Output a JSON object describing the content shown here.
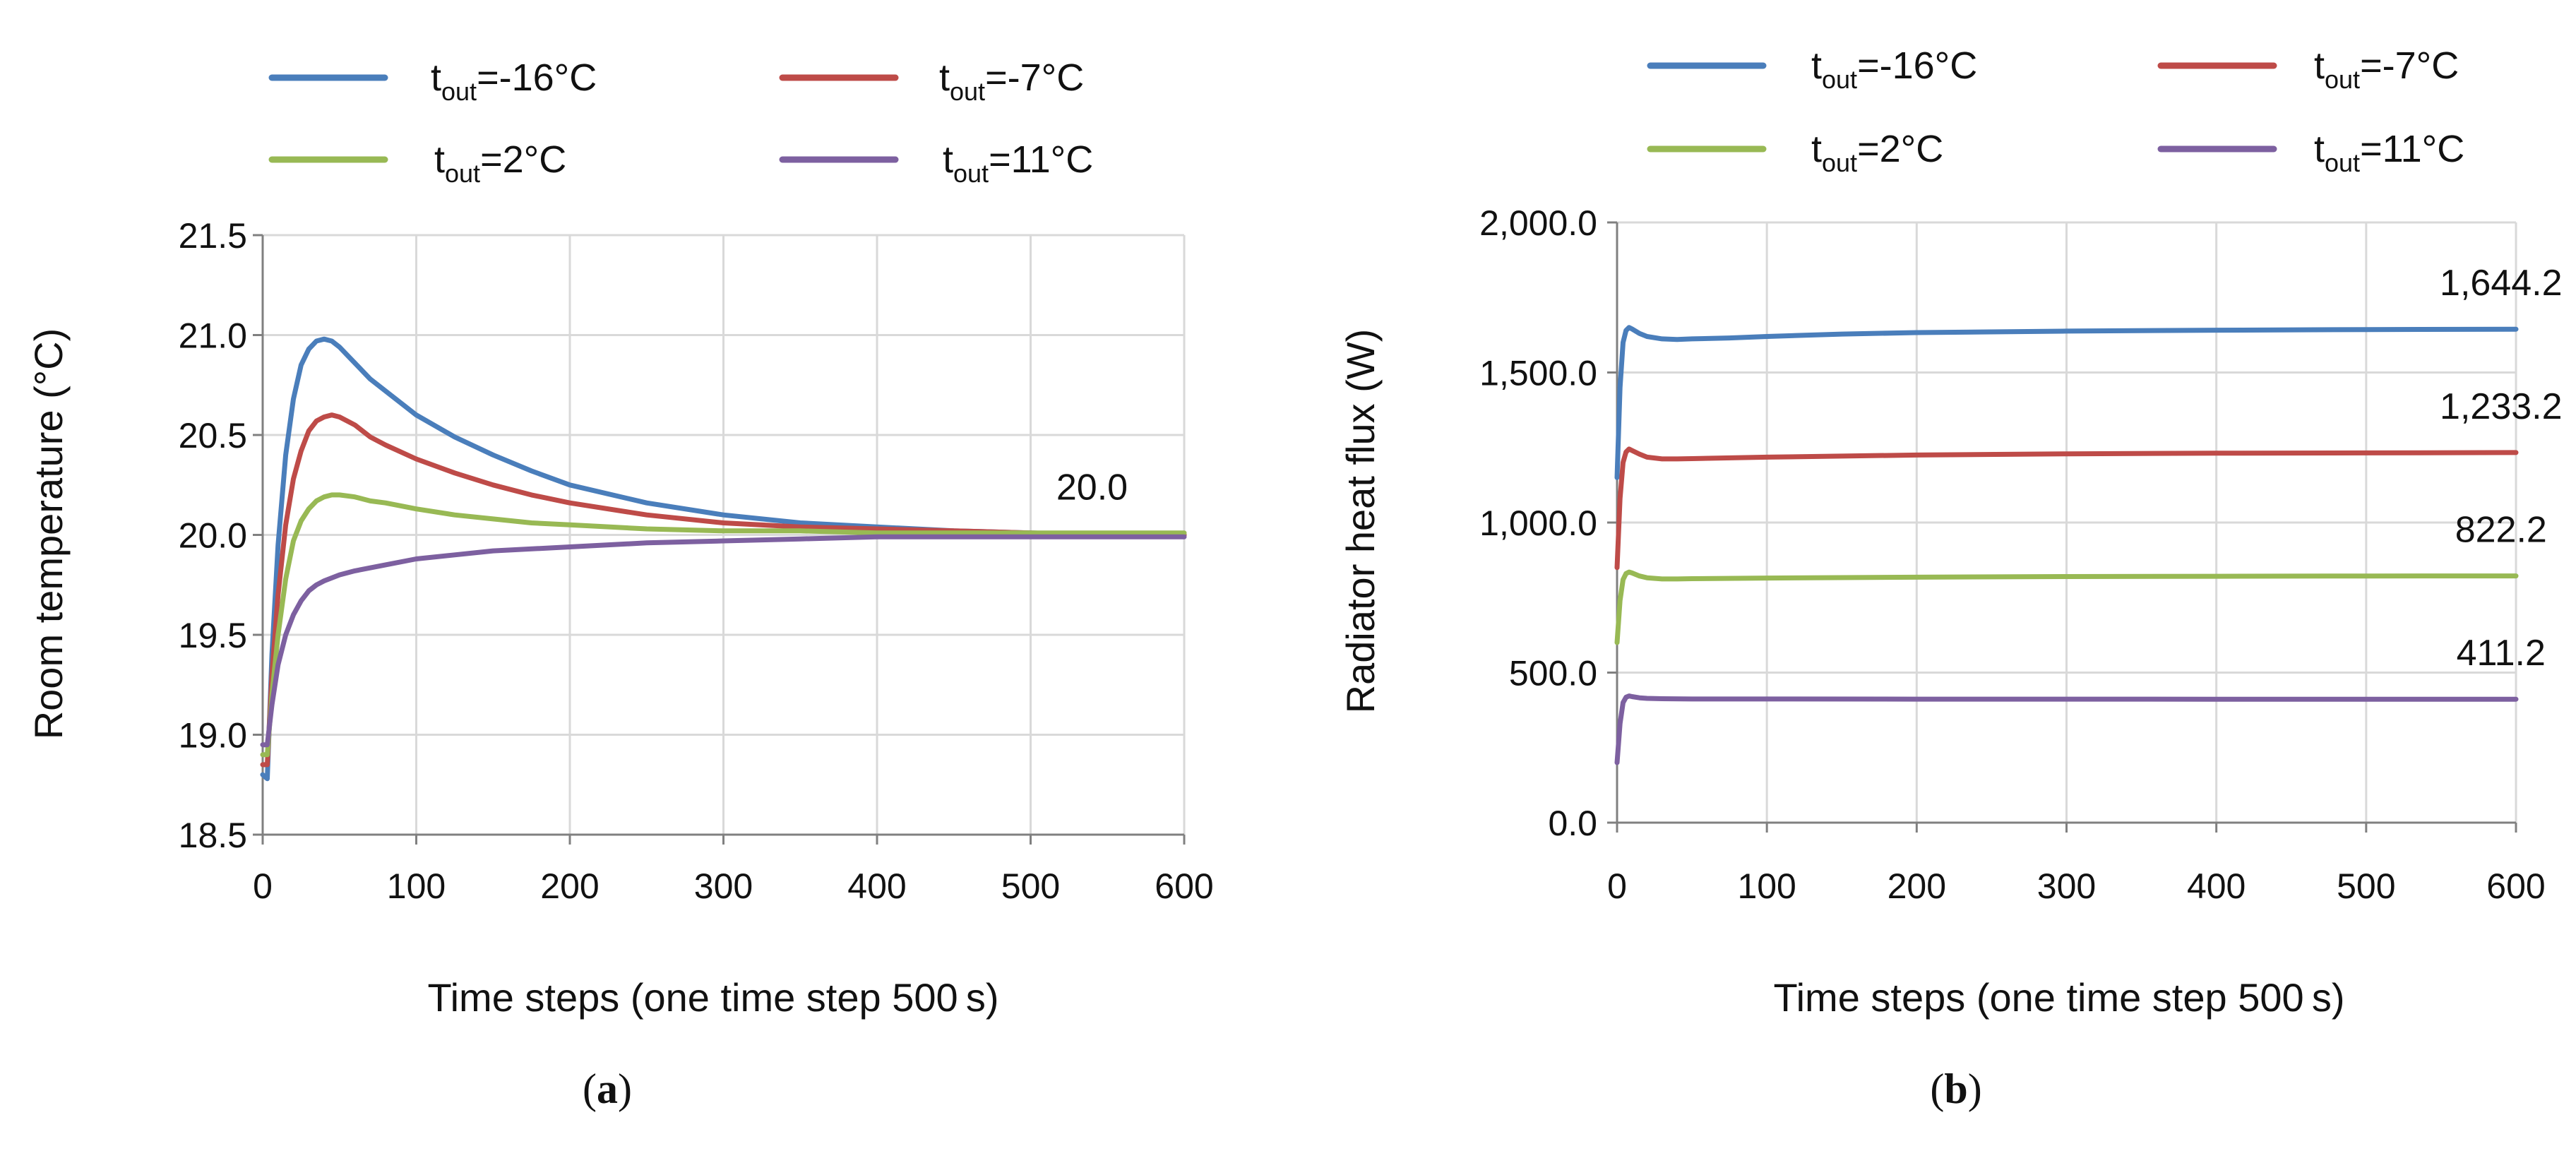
{
  "chart_data": [
    {
      "panel": "(a)",
      "panel_label": "a",
      "type": "line",
      "title": "",
      "xlabel": "Time steps (one time step 500 s)",
      "ylabel": "Room temperature (°C)",
      "xlim": [
        0,
        600
      ],
      "ylim": [
        18.5,
        21.5
      ],
      "x_ticks": [
        0,
        100,
        200,
        300,
        400,
        500,
        600
      ],
      "x_tick_labels": [
        "0",
        "100",
        "200",
        "300",
        "400",
        "500",
        "600"
      ],
      "y_ticks": [
        18.5,
        19.0,
        19.5,
        20.0,
        20.5,
        21.0,
        21.5
      ],
      "y_tick_labels": [
        "18.5",
        "19.0",
        "19.5",
        "20.0",
        "20.5",
        "21.0",
        "21.5"
      ],
      "grid": true,
      "legend_placement": "top",
      "annotations": [
        {
          "text": "20.0",
          "x": 540,
          "y": 20.0
        }
      ],
      "series": [
        {
          "name": "t_out=-16°C",
          "legend_main": "t",
          "legend_sub": "out",
          "legend_rest": "=-16°C",
          "color": "#4a7ebb",
          "points": [
            [
              0,
              18.8
            ],
            [
              3,
              18.78
            ],
            [
              6,
              19.4
            ],
            [
              10,
              19.95
            ],
            [
              15,
              20.4
            ],
            [
              20,
              20.68
            ],
            [
              25,
              20.85
            ],
            [
              30,
              20.93
            ],
            [
              35,
              20.97
            ],
            [
              40,
              20.98
            ],
            [
              45,
              20.97
            ],
            [
              50,
              20.94
            ],
            [
              60,
              20.86
            ],
            [
              70,
              20.78
            ],
            [
              80,
              20.72
            ],
            [
              100,
              20.6
            ],
            [
              125,
              20.49
            ],
            [
              150,
              20.4
            ],
            [
              175,
              20.32
            ],
            [
              200,
              20.25
            ],
            [
              250,
              20.16
            ],
            [
              300,
              20.1
            ],
            [
              350,
              20.06
            ],
            [
              400,
              20.04
            ],
            [
              450,
              20.02
            ],
            [
              500,
              20.01
            ],
            [
              550,
              20.0
            ],
            [
              600,
              20.0
            ]
          ]
        },
        {
          "name": "t_out=-7°C",
          "legend_main": "t",
          "legend_sub": "out",
          "legend_rest": "=-7°C",
          "color": "#be4b48",
          "points": [
            [
              0,
              18.85
            ],
            [
              3,
              18.85
            ],
            [
              6,
              19.3
            ],
            [
              10,
              19.7
            ],
            [
              15,
              20.05
            ],
            [
              20,
              20.28
            ],
            [
              25,
              20.42
            ],
            [
              30,
              20.52
            ],
            [
              35,
              20.57
            ],
            [
              40,
              20.59
            ],
            [
              45,
              20.6
            ],
            [
              50,
              20.59
            ],
            [
              60,
              20.55
            ],
            [
              70,
              20.49
            ],
            [
              80,
              20.45
            ],
            [
              100,
              20.38
            ],
            [
              125,
              20.31
            ],
            [
              150,
              20.25
            ],
            [
              175,
              20.2
            ],
            [
              200,
              20.16
            ],
            [
              250,
              20.1
            ],
            [
              300,
              20.06
            ],
            [
              350,
              20.04
            ],
            [
              400,
              20.03
            ],
            [
              450,
              20.02
            ],
            [
              500,
              20.01
            ],
            [
              550,
              20.0
            ],
            [
              600,
              20.0
            ]
          ]
        },
        {
          "name": "t_out=2°C",
          "legend_main": "t",
          "legend_sub": "out",
          "legend_rest": "=2°C",
          "color": "#98b954",
          "points": [
            [
              0,
              18.9
            ],
            [
              3,
              18.9
            ],
            [
              6,
              19.2
            ],
            [
              10,
              19.5
            ],
            [
              15,
              19.78
            ],
            [
              20,
              19.97
            ],
            [
              25,
              20.07
            ],
            [
              30,
              20.13
            ],
            [
              35,
              20.17
            ],
            [
              40,
              20.19
            ],
            [
              45,
              20.2
            ],
            [
              50,
              20.2
            ],
            [
              60,
              20.19
            ],
            [
              70,
              20.17
            ],
            [
              80,
              20.16
            ],
            [
              100,
              20.13
            ],
            [
              125,
              20.1
            ],
            [
              150,
              20.08
            ],
            [
              175,
              20.06
            ],
            [
              200,
              20.05
            ],
            [
              250,
              20.03
            ],
            [
              300,
              20.02
            ],
            [
              350,
              20.02
            ],
            [
              400,
              20.01
            ],
            [
              450,
              20.01
            ],
            [
              500,
              20.01
            ],
            [
              550,
              20.01
            ],
            [
              600,
              20.01
            ]
          ]
        },
        {
          "name": "t_out=11°C",
          "legend_main": "t",
          "legend_sub": "out",
          "legend_rest": "=11°C",
          "color": "#7d60a0",
          "points": [
            [
              0,
              18.95
            ],
            [
              3,
              18.95
            ],
            [
              6,
              19.15
            ],
            [
              10,
              19.35
            ],
            [
              15,
              19.5
            ],
            [
              20,
              19.6
            ],
            [
              25,
              19.67
            ],
            [
              30,
              19.72
            ],
            [
              35,
              19.75
            ],
            [
              40,
              19.77
            ],
            [
              50,
              19.8
            ],
            [
              60,
              19.82
            ],
            [
              80,
              19.85
            ],
            [
              100,
              19.88
            ],
            [
              125,
              19.9
            ],
            [
              150,
              19.92
            ],
            [
              200,
              19.94
            ],
            [
              250,
              19.96
            ],
            [
              300,
              19.97
            ],
            [
              350,
              19.98
            ],
            [
              400,
              19.99
            ],
            [
              450,
              19.99
            ],
            [
              500,
              19.99
            ],
            [
              550,
              19.99
            ],
            [
              600,
              19.99
            ]
          ]
        }
      ]
    },
    {
      "panel": "(b)",
      "panel_label": "b",
      "type": "line",
      "title": "",
      "xlabel": "Time steps (one time step 500 s)",
      "ylabel": "Radiator heat flux (W)",
      "xlim": [
        0,
        600
      ],
      "ylim": [
        0,
        2000
      ],
      "x_ticks": [
        0,
        100,
        200,
        300,
        400,
        500,
        600
      ],
      "x_tick_labels": [
        "0",
        "100",
        "200",
        "300",
        "400",
        "500",
        "600"
      ],
      "y_ticks": [
        0,
        500,
        1000,
        1500,
        2000
      ],
      "y_tick_labels": [
        "0.0",
        "500.0",
        "1,000.0",
        "1,500.0",
        "2,000.0"
      ],
      "grid": true,
      "legend_placement": "top",
      "annotations": [
        {
          "text": "1,644.2",
          "x": 590,
          "y": 1644.2
        },
        {
          "text": "1,233.2",
          "x": 590,
          "y": 1233.2
        },
        {
          "text": "822.2",
          "x": 590,
          "y": 822.2
        },
        {
          "text": "411.2",
          "x": 590,
          "y": 411.2
        }
      ],
      "series": [
        {
          "name": "t_out=-16°C",
          "legend_main": "t",
          "legend_sub": "out",
          "legend_rest": "=-16°C",
          "color": "#4a7ebb",
          "points": [
            [
              0,
              1150
            ],
            [
              2,
              1450
            ],
            [
              4,
              1600
            ],
            [
              6,
              1640
            ],
            [
              8,
              1650
            ],
            [
              10,
              1645
            ],
            [
              15,
              1630
            ],
            [
              20,
              1620
            ],
            [
              30,
              1612
            ],
            [
              40,
              1610
            ],
            [
              50,
              1612
            ],
            [
              75,
              1615
            ],
            [
              100,
              1620
            ],
            [
              150,
              1628
            ],
            [
              200,
              1633
            ],
            [
              300,
              1638
            ],
            [
              400,
              1641
            ],
            [
              500,
              1643
            ],
            [
              600,
              1644.2
            ]
          ]
        },
        {
          "name": "t_out=-7°C",
          "legend_main": "t",
          "legend_sub": "out",
          "legend_rest": "=-7°C",
          "color": "#be4b48",
          "points": [
            [
              0,
              850
            ],
            [
              2,
              1080
            ],
            [
              4,
              1200
            ],
            [
              6,
              1235
            ],
            [
              8,
              1245
            ],
            [
              10,
              1240
            ],
            [
              15,
              1228
            ],
            [
              20,
              1218
            ],
            [
              30,
              1212
            ],
            [
              40,
              1212
            ],
            [
              50,
              1213
            ],
            [
              100,
              1218
            ],
            [
              200,
              1225
            ],
            [
              300,
              1229
            ],
            [
              400,
              1231
            ],
            [
              500,
              1232
            ],
            [
              600,
              1233.2
            ]
          ]
        },
        {
          "name": "t_out=2°C",
          "legend_main": "t",
          "legend_sub": "out",
          "legend_rest": "=2°C",
          "color": "#98b954",
          "points": [
            [
              0,
              600
            ],
            [
              2,
              740
            ],
            [
              4,
              810
            ],
            [
              6,
              830
            ],
            [
              8,
              835
            ],
            [
              10,
              832
            ],
            [
              15,
              822
            ],
            [
              20,
              816
            ],
            [
              30,
              812
            ],
            [
              40,
              812
            ],
            [
              50,
              813
            ],
            [
              100,
              815
            ],
            [
              200,
              818
            ],
            [
              300,
              820
            ],
            [
              400,
              821
            ],
            [
              500,
              822
            ],
            [
              600,
              822.2
            ]
          ]
        },
        {
          "name": "t_out=11°C",
          "legend_main": "t",
          "legend_sub": "out",
          "legend_rest": "=11°C",
          "color": "#7d60a0",
          "points": [
            [
              0,
              200
            ],
            [
              2,
              330
            ],
            [
              4,
              400
            ],
            [
              6,
              418
            ],
            [
              8,
              422
            ],
            [
              10,
              420
            ],
            [
              15,
              416
            ],
            [
              20,
              414
            ],
            [
              30,
              413
            ],
            [
              50,
              412
            ],
            [
              100,
              412
            ],
            [
              200,
              411.5
            ],
            [
              400,
              411.3
            ],
            [
              600,
              411.2
            ]
          ]
        }
      ]
    }
  ]
}
